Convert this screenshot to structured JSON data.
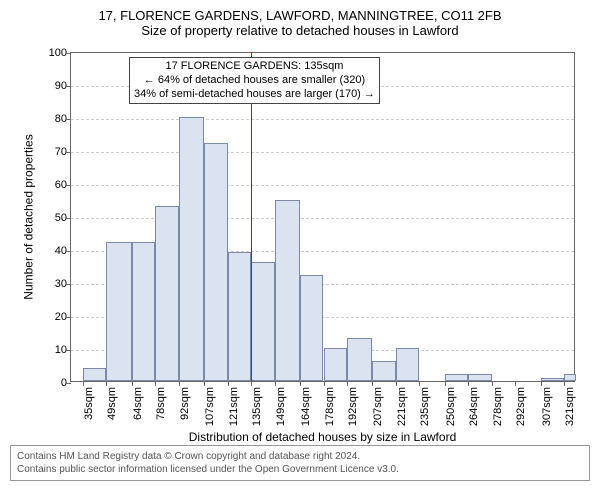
{
  "title_line1": "17, FLORENCE GARDENS, LAWFORD, MANNINGTREE, CO11 2FB",
  "title_line2": "Size of property relative to detached houses in Lawford",
  "y_axis_label": "Number of detached properties",
  "x_axis_label": "Distribution of detached houses by size in Lawford",
  "footer_line1": "Contains HM Land Registry data © Crown copyright and database right 2024.",
  "footer_line2": "Contains public sector information licensed under the Open Government Licence v3.0.",
  "annotation": {
    "line1": "17 FLORENCE GARDENS: 135sqm",
    "line2": "← 64% of detached houses are smaller (320)",
    "line3": "34% of semi-detached houses are larger (170) →"
  },
  "chart": {
    "type": "histogram",
    "ylim": [
      0,
      100
    ],
    "yticks": [
      0,
      10,
      20,
      30,
      40,
      50,
      60,
      70,
      80,
      90,
      100
    ],
    "x_start": 28,
    "x_end": 328,
    "x_tick_labels": [
      "35sqm",
      "49sqm",
      "64sqm",
      "78sqm",
      "92sqm",
      "107sqm",
      "121sqm",
      "135sqm",
      "149sqm",
      "164sqm",
      "178sqm",
      "192sqm",
      "207sqm",
      "221sqm",
      "235sqm",
      "250sqm",
      "264sqm",
      "278sqm",
      "292sqm",
      "307sqm",
      "321sqm"
    ],
    "x_tick_positions": [
      35,
      49,
      64,
      78,
      92,
      107,
      121,
      135,
      149,
      164,
      178,
      192,
      207,
      221,
      235,
      250,
      264,
      278,
      292,
      307,
      321
    ],
    "bars": [
      {
        "x": 35,
        "w": 14,
        "h": 4
      },
      {
        "x": 49,
        "w": 15,
        "h": 42
      },
      {
        "x": 64,
        "w": 14,
        "h": 42
      },
      {
        "x": 78,
        "w": 14,
        "h": 53
      },
      {
        "x": 92,
        "w": 15,
        "h": 80
      },
      {
        "x": 107,
        "w": 14,
        "h": 72
      },
      {
        "x": 121,
        "w": 14,
        "h": 39
      },
      {
        "x": 135,
        "w": 14,
        "h": 36
      },
      {
        "x": 149,
        "w": 15,
        "h": 55
      },
      {
        "x": 164,
        "w": 14,
        "h": 32
      },
      {
        "x": 178,
        "w": 14,
        "h": 10
      },
      {
        "x": 192,
        "w": 15,
        "h": 13
      },
      {
        "x": 207,
        "w": 14,
        "h": 6
      },
      {
        "x": 221,
        "w": 14,
        "h": 10
      },
      {
        "x": 235,
        "w": 15,
        "h": 0
      },
      {
        "x": 250,
        "w": 14,
        "h": 2
      },
      {
        "x": 264,
        "w": 14,
        "h": 2
      },
      {
        "x": 278,
        "w": 14,
        "h": 0
      },
      {
        "x": 292,
        "w": 15,
        "h": 0
      },
      {
        "x": 307,
        "w": 14,
        "h": 1
      },
      {
        "x": 321,
        "w": 7,
        "h": 2
      }
    ],
    "marker_x": 135,
    "bar_fill": "#dbe3f0",
    "bar_stroke": "#7a8aa8",
    "grid_color": "#cccccc",
    "axis_color": "#666666",
    "marker_color": "#e00000",
    "background": "#ffffff"
  }
}
